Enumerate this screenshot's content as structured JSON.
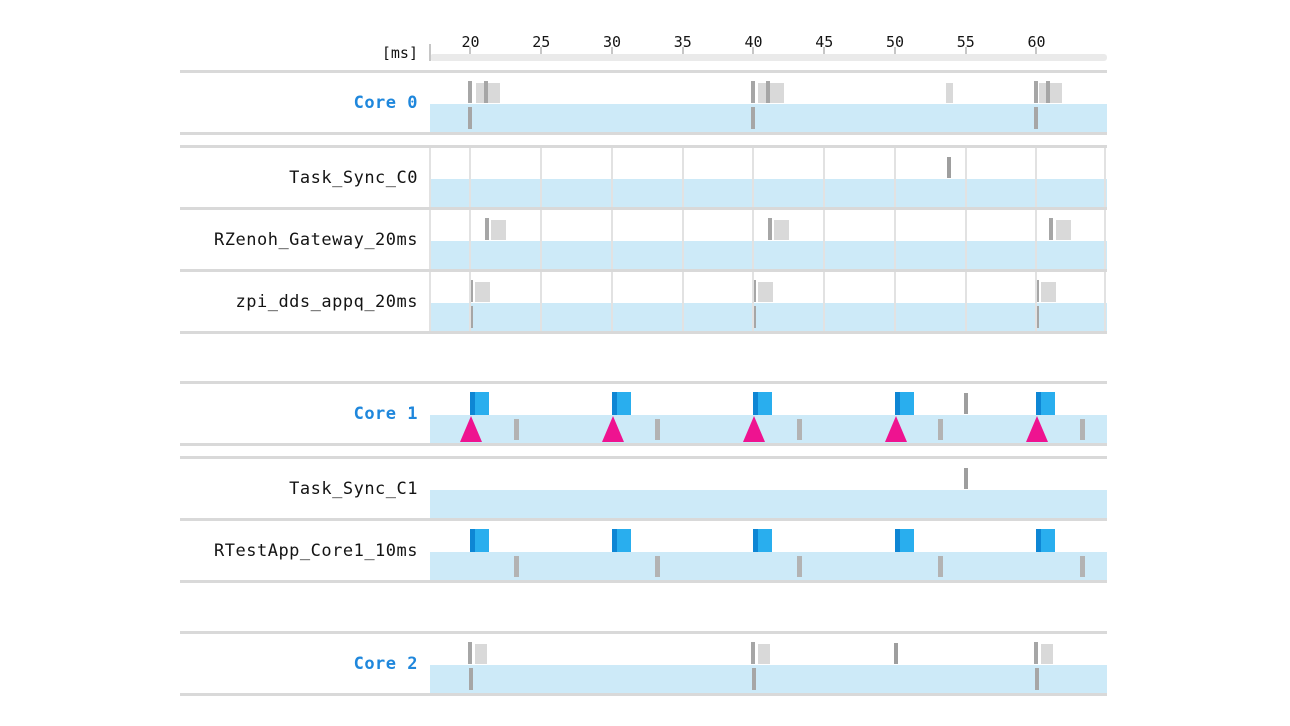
{
  "colors": {
    "core_label": "#1f87dc",
    "task_label": "#141414",
    "activity_band": "#cdeaf8",
    "flag_dark": "#0e86d4",
    "flag_light": "#29aeee",
    "deadline_magenta": "#ee1390",
    "mark_dark_gray": "#a6a6a6",
    "mark_light_gray": "#d9d9d9",
    "band_tick_gray": "#b3b3b3",
    "gridline": "#e2e2e2",
    "separator": "#d9d9d9"
  },
  "chart_data": {
    "type": "timeline",
    "axis": {
      "unit_label": "[ms]",
      "ticks": [
        20,
        25,
        30,
        35,
        40,
        45,
        50,
        55,
        60
      ],
      "range_ms": [
        17.14,
        65.0
      ],
      "grid": "partial"
    },
    "legend": "none",
    "rows": [
      {
        "label": "Core 0",
        "kind": "core",
        "grid": false,
        "upper": [
          {
            "shape": "bar",
            "t": 20.0
          },
          {
            "shape": "rect",
            "t": 20.4,
            "w": 1.7
          },
          {
            "shape": "bar",
            "t": 21.1
          },
          {
            "shape": "bar",
            "t": 40.0
          },
          {
            "shape": "rect",
            "t": 40.3,
            "w": 1.85
          },
          {
            "shape": "bar",
            "t": 41.05
          },
          {
            "shape": "tick-light",
            "t": 53.85
          },
          {
            "shape": "bar",
            "t": 59.95
          },
          {
            "shape": "rect",
            "t": 60.2,
            "w": 1.65
          },
          {
            "shape": "bar",
            "t": 60.85
          }
        ],
        "band": [
          {
            "shape": "tick-dark",
            "t": 20.0
          },
          {
            "shape": "tick-dark",
            "t": 40.0
          },
          {
            "shape": "tick-dark",
            "t": 60.0
          }
        ]
      },
      {
        "label": "Task_Sync_C0",
        "kind": "task",
        "grid": true,
        "upper": [
          {
            "shape": "tick-dark",
            "t": 53.8
          }
        ],
        "band": []
      },
      {
        "label": "RZenoh_Gateway_20ms",
        "kind": "task",
        "grid": true,
        "upper": [
          {
            "shape": "bar",
            "t": 21.15
          },
          {
            "shape": "rect",
            "t": 21.45,
            "w": 1.05
          },
          {
            "shape": "bar",
            "t": 41.15
          },
          {
            "shape": "rect",
            "t": 41.45,
            "w": 1.05
          },
          {
            "shape": "bar",
            "t": 61.05
          },
          {
            "shape": "rect",
            "t": 61.35,
            "w": 1.05
          }
        ],
        "band": []
      },
      {
        "label": "zpi_dds_appq_20ms",
        "kind": "task",
        "grid": true,
        "upper": [
          {
            "shape": "bar",
            "t": 20.05
          },
          {
            "shape": "rect",
            "t": 20.35,
            "w": 1.05
          },
          {
            "shape": "bar",
            "t": 40.05
          },
          {
            "shape": "rect",
            "t": 40.35,
            "w": 1.05
          },
          {
            "shape": "bar",
            "t": 60.05
          },
          {
            "shape": "rect",
            "t": 60.35,
            "w": 1.05
          }
        ],
        "band": [
          {
            "shape": "tick-dark",
            "t": 20.05
          },
          {
            "shape": "tick-dark",
            "t": 40.05
          },
          {
            "shape": "tick-dark",
            "t": 60.05
          }
        ]
      },
      {
        "label": "Core 1",
        "kind": "core",
        "grid": false,
        "upper": [
          {
            "shape": "flag",
            "t": 20.0
          },
          {
            "shape": "flag",
            "t": 30.0
          },
          {
            "shape": "flag",
            "t": 40.0
          },
          {
            "shape": "flag",
            "t": 50.0
          },
          {
            "shape": "tick-dark",
            "t": 55.0
          },
          {
            "shape": "flag",
            "t": 60.0
          }
        ],
        "band": [
          {
            "shape": "triangle",
            "t": 20.05
          },
          {
            "shape": "tick-gray",
            "t": 23.2
          },
          {
            "shape": "triangle",
            "t": 30.05
          },
          {
            "shape": "tick-gray",
            "t": 33.2
          },
          {
            "shape": "triangle",
            "t": 40.05
          },
          {
            "shape": "tick-gray",
            "t": 43.2
          },
          {
            "shape": "triangle",
            "t": 50.05
          },
          {
            "shape": "tick-gray",
            "t": 53.2
          },
          {
            "shape": "triangle",
            "t": 60.05
          },
          {
            "shape": "tick-gray",
            "t": 63.2
          }
        ]
      },
      {
        "label": "Task_Sync_C1",
        "kind": "task",
        "grid": false,
        "upper": [
          {
            "shape": "tick-dark",
            "t": 55.0
          }
        ],
        "band": []
      },
      {
        "label": "RTestApp_Core1_10ms",
        "kind": "task",
        "grid": false,
        "upper": [
          {
            "shape": "flag",
            "t": 20.0
          },
          {
            "shape": "flag",
            "t": 30.0
          },
          {
            "shape": "flag",
            "t": 40.0
          },
          {
            "shape": "flag",
            "t": 50.0
          },
          {
            "shape": "flag",
            "t": 60.0
          }
        ],
        "band": [
          {
            "shape": "tick-gray",
            "t": 23.2
          },
          {
            "shape": "tick-gray",
            "t": 33.2
          },
          {
            "shape": "tick-gray",
            "t": 43.2
          },
          {
            "shape": "tick-gray",
            "t": 53.2
          },
          {
            "shape": "tick-gray",
            "t": 63.2
          }
        ]
      },
      {
        "label": "Core 2",
        "kind": "core",
        "grid": false,
        "upper": [
          {
            "shape": "bar",
            "t": 20.0
          },
          {
            "shape": "rect",
            "t": 20.3,
            "w": 0.85
          },
          {
            "shape": "bar",
            "t": 40.0
          },
          {
            "shape": "rect",
            "t": 40.3,
            "w": 0.85
          },
          {
            "shape": "tick-dark",
            "t": 50.1
          },
          {
            "shape": "bar",
            "t": 60.0
          },
          {
            "shape": "rect",
            "t": 60.3,
            "w": 0.85
          }
        ],
        "band": [
          {
            "shape": "tick-dark",
            "t": 20.05
          },
          {
            "shape": "tick-dark",
            "t": 40.05
          },
          {
            "shape": "tick-dark",
            "t": 60.05
          }
        ]
      }
    ]
  }
}
